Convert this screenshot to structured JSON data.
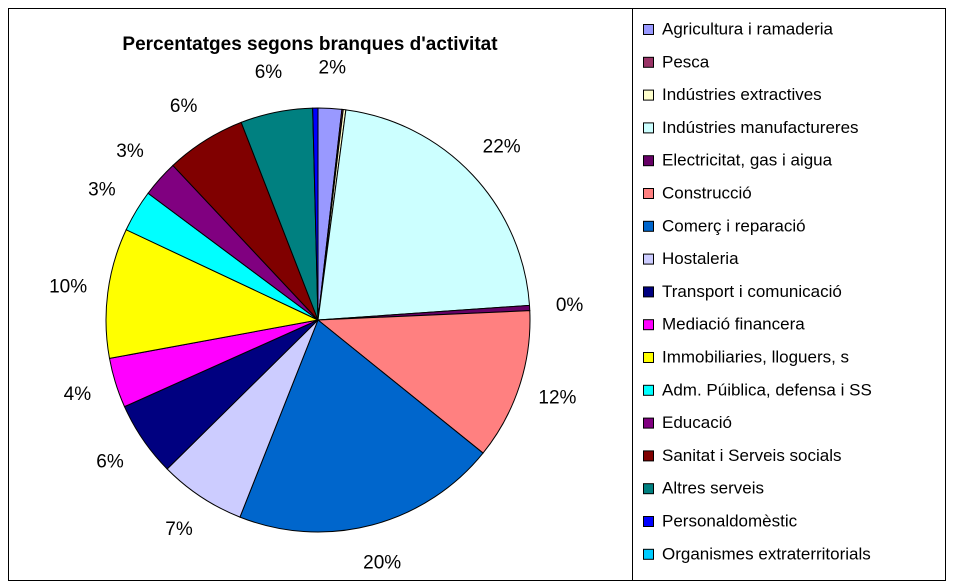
{
  "chart_data": {
    "type": "pie",
    "title": "Percentatges segons branques d'activitat",
    "categories": [
      "Agricultura i ramaderia",
      "Pesca",
      "Indústries extractives",
      "Indústries manufactureres",
      "Electricitat, gas i aigua",
      "Construcció",
      "Comerç i reparació",
      "Hostaleria",
      "Transport i comunicació",
      "Mediació financera",
      "Immobiliaries, lloguers, s",
      "Adm. Púiblica, defensa i SS",
      "Educació",
      "Sanitat i Serveis socials",
      "Altres serveis",
      "Personaldomèstic",
      "Organismes extraterritorials"
    ],
    "values": [
      1.8,
      0.1,
      0.2,
      21.8,
      0.4,
      11.5,
      20.2,
      6.6,
      5.7,
      3.8,
      9.9,
      3.2,
      2.8,
      6.1,
      5.5,
      0.4,
      0
    ],
    "value_labels": [
      "2%",
      null,
      null,
      "22%",
      "0%",
      "12%",
      "20%",
      "7%",
      "6%",
      "4%",
      "10%",
      "3%",
      "3%",
      "6%",
      "6%",
      null,
      null
    ],
    "colors": [
      "#9999ff",
      "#993366",
      "#ffffcc",
      "#ccffff",
      "#660066",
      "#ff8080",
      "#0066cc",
      "#ccccff",
      "#000080",
      "#ff00ff",
      "#ffff00",
      "#00ffff",
      "#800080",
      "#800000",
      "#008080",
      "#0000ff",
      "#00ccff"
    ],
    "legend": "right"
  }
}
